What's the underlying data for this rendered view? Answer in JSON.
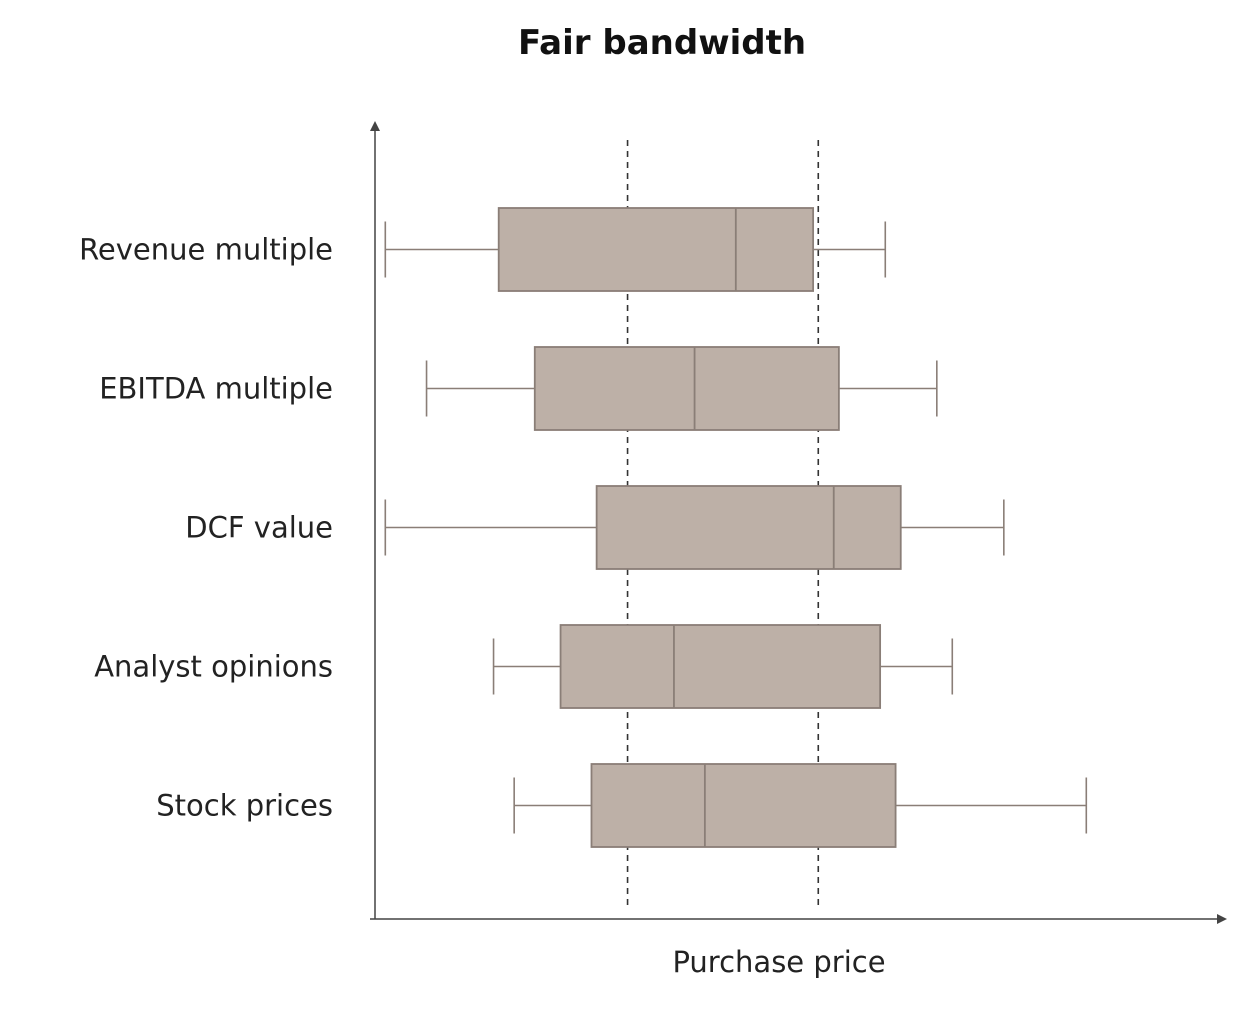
{
  "chart_data": {
    "type": "box",
    "title": "Fair bandwidth",
    "xlabel": "Purchase price",
    "ylabel": "",
    "categories": [
      "Revenue multiple",
      "EBITDA multiple",
      "DCF value",
      "Analyst opinions",
      "Stock prices"
    ],
    "boxes": [
      {
        "name": "Revenue multiple",
        "min": 1,
        "q1": 12,
        "median": 35,
        "q3": 42.5,
        "max": 49.5
      },
      {
        "name": "EBITDA multiple",
        "min": 5,
        "q1": 15.5,
        "median": 31,
        "q3": 45,
        "max": 54.5
      },
      {
        "name": "DCF value",
        "min": 1,
        "q1": 21.5,
        "median": 44.5,
        "q3": 51,
        "max": 61
      },
      {
        "name": "Analyst opinions",
        "min": 11.5,
        "q1": 18,
        "median": 29,
        "q3": 49,
        "max": 56
      },
      {
        "name": "Stock prices",
        "min": 13.5,
        "q1": 21,
        "median": 32,
        "q3": 50.5,
        "max": 69
      }
    ],
    "fair_range": [
      24.5,
      43
    ],
    "xlim": [
      0,
      81
    ],
    "grid": false,
    "ticks": "none",
    "colors": {
      "box_fill": "#bdb0a7",
      "box_stroke": "#8a7e77",
      "whisker": "#8a7e77",
      "axis": "#444444",
      "reference_line": "#333333"
    }
  }
}
